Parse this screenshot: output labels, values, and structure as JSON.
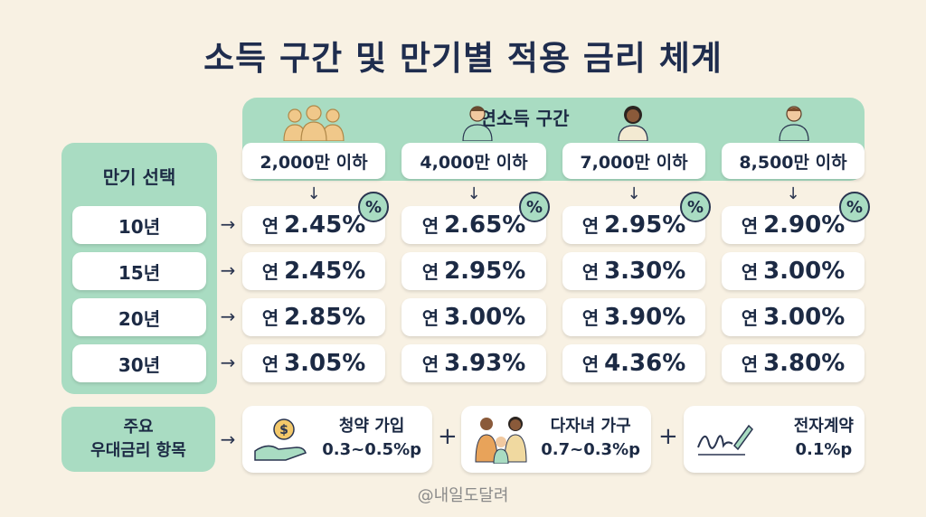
{
  "title": "소득 구간 및 만기별 적용 금리 체계",
  "income_header": "연소득 구간",
  "income_brackets": [
    "2,000만 이하",
    "4,000만 이하",
    "7,000만 이하",
    "8,500만 이하"
  ],
  "term_header": "만기 선택",
  "terms": [
    "10년",
    "15년",
    "20년",
    "30년"
  ],
  "rate_prefix": "연",
  "rates": [
    [
      "2.45%",
      "2.65%",
      "2.95%",
      "2.90%"
    ],
    [
      "2.45%",
      "2.95%",
      "3.30%",
      "3.00%"
    ],
    [
      "2.85%",
      "3.00%",
      "3.90%",
      "3.00%"
    ],
    [
      "3.05%",
      "3.93%",
      "4.36%",
      "3.80%"
    ]
  ],
  "percent_badge": "%",
  "benefits_header": {
    "line1": "주요",
    "line2": "우대금리 항목"
  },
  "benefits": [
    {
      "name": "청약 가입",
      "value": "0.3~0.5%p",
      "icon": "money-hand-icon"
    },
    {
      "name": "다자녀 가구",
      "value": "0.7~0.3%p",
      "icon": "family-icon"
    },
    {
      "name": "전자계약",
      "value": "0.1%p",
      "icon": "signature-pen-icon"
    }
  ],
  "plus_sign": "+",
  "watermark": "@내일도달려",
  "colors": {
    "accent_green": "#a9dcc2",
    "background": "#f8f1e3",
    "text_navy": "#1c2a44"
  }
}
